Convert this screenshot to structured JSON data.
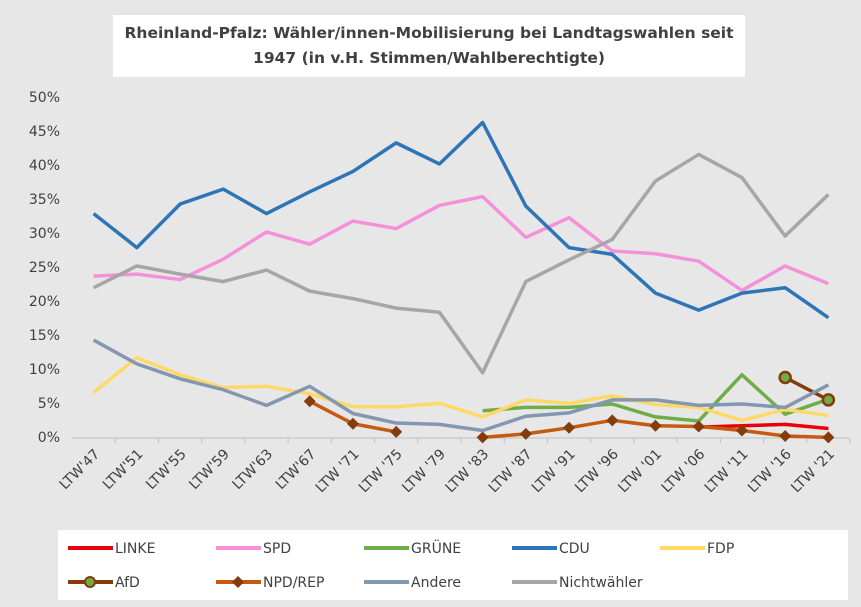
{
  "chart_data": {
    "type": "line",
    "title": "Rheinland-Pfalz: Wähler/innen-Mobilisierung bei Landtagswahlen seit 1947 (in v.H. Stimmen/Wahlberechtigte)",
    "categories": [
      "LTW'47",
      "LTW'51",
      "LTW'55",
      "LTW'59",
      "LTW'63",
      "LTW'67",
      "LTW '71",
      "LTW '75",
      "LTW '79",
      "LTW '83",
      "LTW '87",
      "LTW '91",
      "LTW '96",
      "LTW '01",
      "LTW '06",
      "LTW '11",
      "LTW '16",
      "LTW '21"
    ],
    "ylim": [
      0,
      50
    ],
    "yticks": [
      {
        "value": 0,
        "label": "0%"
      },
      {
        "value": 5,
        "label": "5%"
      },
      {
        "value": 10,
        "label": "10%"
      },
      {
        "value": 15,
        "label": "15%"
      },
      {
        "value": 20,
        "label": "20%"
      },
      {
        "value": 25,
        "label": "25%"
      },
      {
        "value": 30,
        "label": "30%"
      },
      {
        "value": 35,
        "label": "35%"
      },
      {
        "value": 40,
        "label": "40%"
      },
      {
        "value": 45,
        "label": "45%"
      },
      {
        "value": 50,
        "label": "50%"
      }
    ],
    "grid": false,
    "legend": "bottom",
    "series": [
      {
        "name": "LINKE",
        "color": "#e8000b",
        "values": [
          null,
          null,
          null,
          null,
          null,
          null,
          null,
          null,
          null,
          null,
          null,
          null,
          null,
          null,
          1.6,
          1.8,
          2.0,
          1.4
        ]
      },
      {
        "name": "SPD",
        "color": "#f590da",
        "values": [
          23.8,
          24.1,
          23.3,
          26.3,
          30.3,
          28.5,
          31.9,
          30.8,
          34.2,
          35.5,
          29.5,
          32.4,
          27.5,
          27.1,
          26,
          21.7,
          25.3,
          22.7
        ]
      },
      {
        "name": "GRÜNE",
        "color": "#70ad47",
        "values": [
          null,
          null,
          null,
          null,
          null,
          null,
          null,
          null,
          null,
          4.0,
          4.5,
          4.5,
          5.0,
          3.1,
          2.5,
          9.3,
          3.5,
          5.7
        ]
      },
      {
        "name": "CDU",
        "color": "#2e75b6",
        "values": [
          33,
          28,
          34.4,
          36.6,
          33,
          36.2,
          39.2,
          43.4,
          40.3,
          46.4,
          34.1,
          28,
          27,
          21.3,
          18.8,
          21.3,
          22.1,
          17.7
        ]
      },
      {
        "name": "FDP",
        "color": "#ffd966",
        "values": [
          6.7,
          11.8,
          9.3,
          7.4,
          7.6,
          6.5,
          4.6,
          4.6,
          5.1,
          3.1,
          5.6,
          5.1,
          6.2,
          4.9,
          4.5,
          2.6,
          4.2,
          3.3
        ]
      },
      {
        "name": "AfD",
        "color": "#843c0c",
        "marker": "circle",
        "marker_color": "#70ad47",
        "values": [
          null,
          null,
          null,
          null,
          null,
          null,
          null,
          null,
          null,
          null,
          null,
          null,
          null,
          null,
          null,
          null,
          8.9,
          5.6
        ]
      },
      {
        "name": "NPD/REP",
        "color": "#c55a11",
        "marker": "diamond",
        "marker_color": "#843c0c",
        "values": [
          null,
          null,
          null,
          null,
          null,
          5.4,
          2.1,
          0.9,
          null,
          0.1,
          0.6,
          1.5,
          2.6,
          1.8,
          1.7,
          1.1,
          0.3,
          0.1
        ]
      },
      {
        "name": "Andere",
        "color": "#8497b0",
        "values": [
          14.4,
          10.9,
          8.7,
          7.1,
          4.8,
          7.6,
          3.6,
          2.2,
          2.0,
          1.1,
          3.2,
          3.7,
          5.6,
          5.6,
          4.8,
          5.0,
          4.5,
          7.8
        ]
      },
      {
        "name": "Nichtwähler",
        "color": "#a6a6a6",
        "values": [
          22.1,
          25.3,
          24.1,
          23,
          24.7,
          21.6,
          20.5,
          19.1,
          18.5,
          9.6,
          23,
          26.2,
          29.2,
          37.8,
          41.7,
          38.3,
          29.7,
          35.8
        ]
      }
    ]
  }
}
